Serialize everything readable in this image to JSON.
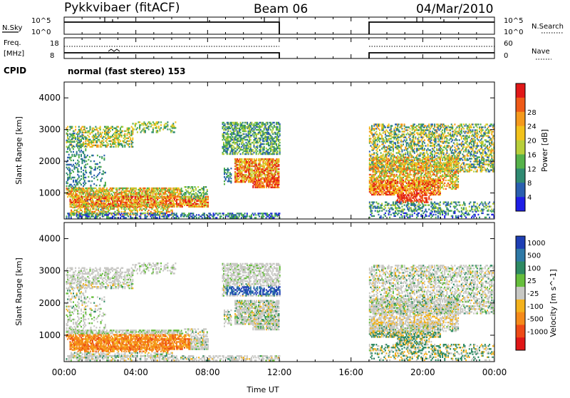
{
  "header": {
    "station": "Pykkvibaer (fitACF)",
    "beam": "Beam 06",
    "date": "04/Mar/2010"
  },
  "noise_panel": {
    "left_label": "N.Sky",
    "left_ticks": [
      "10^5",
      "10^0"
    ],
    "right_ticks": [
      "10^5",
      "10^0"
    ],
    "right_label": "N.Search"
  },
  "freq_panel": {
    "left_label_1": "Freq.",
    "left_label_2": "[MHz]",
    "left_ticks": [
      "18",
      "8"
    ],
    "right_ticks": [
      "60",
      "0"
    ],
    "right_label": "Nave"
  },
  "cpid": {
    "label": "CPID",
    "value": "normal (fast stereo) 153"
  },
  "x_axis": {
    "title": "Time UT",
    "ticks": [
      "00:00",
      "04:00",
      "08:00",
      "12:00",
      "16:00",
      "20:00",
      "00:00"
    ]
  },
  "chart_data": [
    {
      "type": "heatmap",
      "title": "",
      "ylabel": "Slant Range [km]",
      "xlabel": "Time UT",
      "ylim": [
        180,
        4500
      ],
      "yticks": [
        "1000",
        "2000",
        "3000",
        "4000"
      ],
      "colorbar": {
        "label": "Power [dB]",
        "ticks": [
          "4",
          "8",
          "12",
          "16",
          "20",
          "24",
          "28"
        ],
        "colors": [
          "#1e1ee6",
          "#2a5fb0",
          "#2f8a72",
          "#56b24a",
          "#b8cf3a",
          "#f2c21b",
          "#f59a1d",
          "#ef5a17",
          "#e11818"
        ]
      },
      "data_coverage_hours": [
        [
          0,
          12
        ],
        [
          17,
          24
        ]
      ]
    },
    {
      "type": "heatmap",
      "title": "",
      "ylabel": "Slant Range [km]",
      "xlabel": "Time UT",
      "ylim": [
        180,
        4500
      ],
      "yticks": [
        "1000",
        "2000",
        "3000",
        "4000"
      ],
      "colorbar": {
        "label": "Velocity [m s^-1]",
        "ticks": [
          "1000",
          "500",
          "100",
          "25",
          "-25",
          "-100",
          "-500",
          "-1000"
        ],
        "colors": [
          "#1e3fb4",
          "#2e79a6",
          "#2e8a63",
          "#66be3c",
          "#c8c8c4",
          "#f4b21c",
          "#f58a1a",
          "#ee4a16",
          "#e01616"
        ]
      },
      "data_coverage_hours": [
        [
          0,
          12
        ],
        [
          17,
          24
        ]
      ]
    }
  ]
}
